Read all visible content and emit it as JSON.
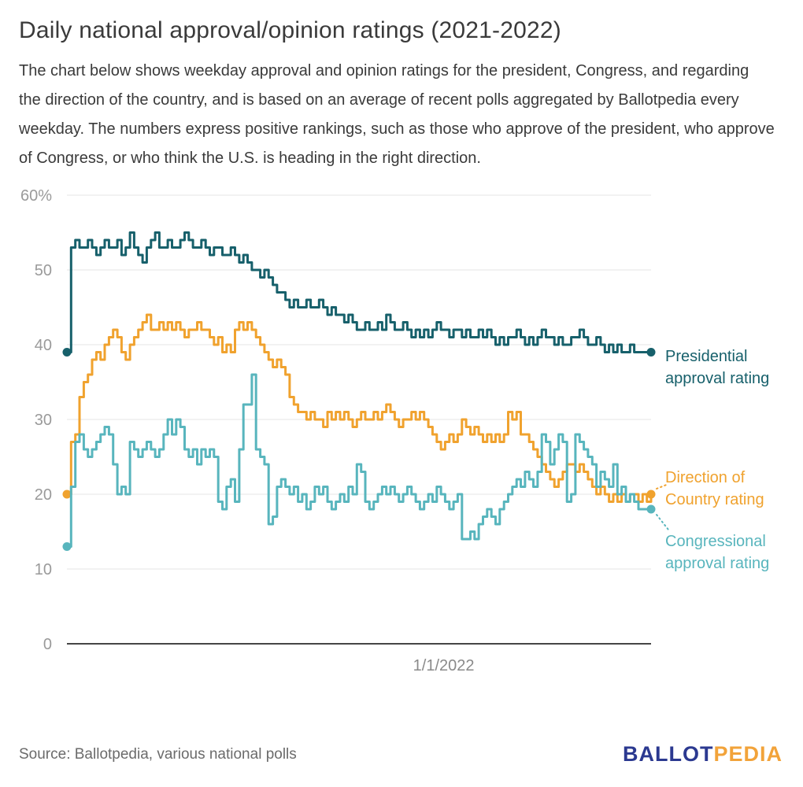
{
  "title": "Daily national approval/opinion ratings (2021-2022)",
  "subtitle": "The chart below shows weekday approval and opinion ratings for the president, Congress, and regarding the direction of the country, and is based on an average of recent polls aggregated by Ballotpedia every weekday. The numbers express positive rankings, such as those who approve of the president, who approve of Congress, or who think the U.S. is heading in the right direction.",
  "footer": {
    "source": "Source: Ballotpedia, various national polls",
    "logo_ballot": "BALLOT",
    "logo_pedia": "PEDIA",
    "logo_ballot_color": "#2b3990",
    "logo_pedia_color": "#f2a33a"
  },
  "chart_data": {
    "type": "line",
    "title": "Daily national approval/opinion ratings (2021-2022)",
    "ylim": [
      0,
      60
    ],
    "grid": "horizontal",
    "legend_position": "right-annotations",
    "y_ticks": [
      {
        "value": 60,
        "label": "60%"
      },
      {
        "value": 50,
        "label": "50"
      },
      {
        "value": 40,
        "label": "40"
      },
      {
        "value": 30,
        "label": "30"
      },
      {
        "value": 20,
        "label": "20"
      },
      {
        "value": 10,
        "label": "10"
      },
      {
        "value": 0,
        "label": "0"
      }
    ],
    "x_tick": {
      "label": "1/1/2022",
      "position": 0.645
    },
    "x_range_note": "weekdays from late January 2021 through mid 2022, normalized 0-1",
    "series": [
      {
        "name": "Presidential approval rating",
        "color": "#17606b",
        "start_value": 39,
        "end_value": 39,
        "values": [
          39,
          53,
          54,
          53,
          53,
          54,
          53,
          52,
          53,
          54,
          53,
          53,
          54,
          52,
          53,
          55,
          53,
          52,
          51,
          53,
          54,
          55,
          53,
          53,
          54,
          53,
          53,
          54,
          55,
          54,
          53,
          53,
          54,
          53,
          52,
          53,
          53,
          52,
          52,
          53,
          52,
          51,
          52,
          51,
          50,
          50,
          49,
          50,
          49,
          48,
          47,
          47,
          46,
          45,
          46,
          45,
          45,
          46,
          45,
          45,
          46,
          45,
          44,
          45,
          44,
          44,
          43,
          44,
          43,
          42,
          42,
          43,
          42,
          42,
          43,
          42,
          44,
          43,
          42,
          42,
          43,
          42,
          41,
          42,
          41,
          42,
          41,
          42,
          43,
          42,
          42,
          41,
          42,
          42,
          41,
          42,
          41,
          41,
          42,
          41,
          42,
          41,
          40,
          41,
          40,
          41,
          41,
          42,
          41,
          40,
          41,
          40,
          41,
          42,
          41,
          41,
          40,
          41,
          40,
          40,
          41,
          41,
          42,
          41,
          40,
          40,
          41,
          40,
          39,
          40,
          39,
          40,
          39,
          39,
          40,
          39,
          39,
          39,
          39,
          39
        ]
      },
      {
        "name": "Direction of Country rating",
        "color": "#f0a22e",
        "start_value": 20,
        "end_value": 20,
        "values": [
          20,
          27,
          28,
          33,
          35,
          36,
          38,
          39,
          38,
          40,
          41,
          42,
          41,
          39,
          38,
          40,
          41,
          42,
          43,
          44,
          42,
          42,
          43,
          42,
          43,
          42,
          43,
          42,
          41,
          42,
          42,
          43,
          42,
          42,
          41,
          40,
          41,
          39,
          40,
          39,
          42,
          43,
          42,
          43,
          42,
          41,
          40,
          39,
          38,
          37,
          38,
          37,
          36,
          33,
          32,
          31,
          31,
          30,
          31,
          30,
          30,
          29,
          31,
          30,
          31,
          30,
          31,
          30,
          29,
          30,
          31,
          30,
          30,
          31,
          30,
          31,
          32,
          31,
          30,
          29,
          30,
          30,
          31,
          30,
          31,
          30,
          29,
          28,
          27,
          26,
          27,
          28,
          27,
          28,
          30,
          29,
          28,
          29,
          28,
          27,
          28,
          27,
          28,
          27,
          28,
          31,
          30,
          31,
          28,
          28,
          27,
          26,
          25,
          24,
          23,
          22,
          21,
          22,
          23,
          24,
          24,
          23,
          24,
          23,
          22,
          21,
          20,
          21,
          20,
          19,
          20,
          19,
          20,
          19,
          20,
          20,
          19,
          20,
          19,
          20
        ]
      },
      {
        "name": "Congressional approval rating",
        "color": "#58b5bd",
        "start_value": 13,
        "end_value": 18,
        "values": [
          13,
          21,
          27,
          28,
          26,
          25,
          26,
          27,
          28,
          29,
          28,
          24,
          20,
          21,
          20,
          27,
          26,
          25,
          26,
          27,
          26,
          25,
          26,
          28,
          30,
          28,
          30,
          29,
          26,
          25,
          26,
          24,
          26,
          25,
          26,
          25,
          19,
          18,
          21,
          22,
          19,
          26,
          32,
          32,
          36,
          26,
          25,
          24,
          16,
          17,
          21,
          22,
          21,
          20,
          21,
          19,
          20,
          18,
          19,
          21,
          20,
          21,
          19,
          18,
          19,
          20,
          19,
          21,
          20,
          24,
          23,
          19,
          18,
          19,
          20,
          21,
          20,
          21,
          20,
          19,
          20,
          21,
          20,
          19,
          18,
          19,
          20,
          19,
          21,
          20,
          19,
          18,
          19,
          20,
          14,
          14,
          15,
          14,
          16,
          17,
          18,
          17,
          16,
          18,
          19,
          20,
          21,
          22,
          21,
          23,
          22,
          21,
          23,
          28,
          27,
          24,
          26,
          28,
          27,
          19,
          20,
          28,
          27,
          26,
          25,
          24,
          21,
          23,
          22,
          21,
          24,
          20,
          21,
          19,
          20,
          19,
          18,
          18,
          18,
          18
        ]
      }
    ]
  }
}
